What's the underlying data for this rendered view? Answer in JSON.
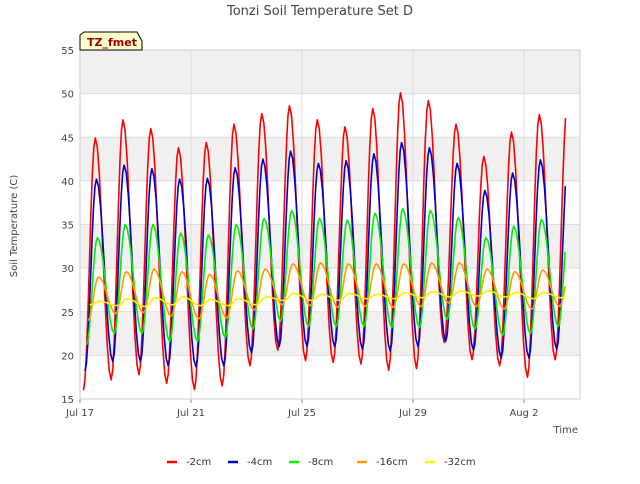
{
  "chart_data": {
    "type": "line",
    "title": "Tonzi Soil Temperature Set D",
    "xlabel": "Time",
    "ylabel": "Soil Temperature (C)",
    "ylim": [
      15,
      55
    ],
    "y_ticks": [
      15,
      20,
      25,
      30,
      35,
      40,
      45,
      50,
      55
    ],
    "x_range_days": [
      "Jul 17",
      "Aug 4"
    ],
    "x_ticks": [
      {
        "label": "Jul 17",
        "day": 0
      },
      {
        "label": "Jul 21",
        "day": 4
      },
      {
        "label": "Jul 25",
        "day": 8
      },
      {
        "label": "Jul 29",
        "day": 12
      },
      {
        "label": "Aug 2",
        "day": 16
      }
    ],
    "site_label": "TZ_fmet",
    "legend_position": "bottom",
    "grid": true,
    "background_bands": true,
    "series": [
      {
        "name": "-2cm",
        "color": "#ff0000",
        "daily_min": [
          16.0,
          17.2,
          17.8,
          16.8,
          16.1,
          16.5,
          18.8,
          20.6,
          19.4,
          19.2,
          19.0,
          18.3,
          18.5,
          21.5,
          19.5,
          18.8,
          17.5,
          19.5,
          18.3,
          22.3
        ],
        "daily_max": [
          44.9,
          47.0,
          46.0,
          43.8,
          44.4,
          46.5,
          47.7,
          48.6,
          47.0,
          46.2,
          48.3,
          50.1,
          49.2,
          46.5,
          42.8,
          45.6,
          47.6,
          48.3
        ]
      },
      {
        "name": "-4cm",
        "color": "#0000cc",
        "daily_min": [
          18.2,
          19.3,
          19.3,
          18.8,
          18.7,
          18.8,
          20.3,
          21.0,
          21.0,
          21.0,
          20.7,
          20.5,
          21.0,
          21.6,
          20.6,
          19.7,
          19.7,
          20.7,
          20.5,
          24.3
        ],
        "daily_max": [
          40.2,
          41.8,
          41.4,
          40.2,
          40.3,
          41.5,
          42.5,
          43.4,
          42.0,
          42.3,
          43.1,
          44.4,
          43.8,
          42.0,
          38.9,
          40.9,
          42.4,
          42.6
        ]
      },
      {
        "name": "-8cm",
        "color": "#00ee00",
        "daily_min": [
          21.2,
          22.5,
          22.5,
          21.6,
          21.6,
          22.0,
          23.0,
          23.9,
          23.3,
          23.3,
          23.3,
          23.2,
          23.2,
          24.1,
          23.0,
          22.3,
          22.5,
          23.3,
          23.0,
          26.5
        ],
        "daily_max": [
          33.5,
          35.0,
          35.0,
          34.0,
          33.8,
          35.0,
          35.7,
          36.6,
          35.7,
          35.5,
          36.3,
          36.8,
          36.6,
          35.8,
          33.5,
          34.8,
          35.6,
          35.7
        ]
      },
      {
        "name": "-16cm",
        "color": "#ff9900",
        "daily_min": [
          24.0,
          24.8,
          24.9,
          24.5,
          24.2,
          24.3,
          25.2,
          25.8,
          25.7,
          25.5,
          25.6,
          25.5,
          25.6,
          26.0,
          25.6,
          25.3,
          25.3,
          25.6,
          25.5,
          27.2
        ],
        "daily_max": [
          29.0,
          29.6,
          29.9,
          29.6,
          29.3,
          29.7,
          29.9,
          30.5,
          30.6,
          30.5,
          30.5,
          30.5,
          30.6,
          30.6,
          29.9,
          29.6,
          29.8,
          30.3
        ]
      },
      {
        "name": "-32cm",
        "color": "#ffee00",
        "daily_min": [
          25.8,
          25.7,
          25.6,
          25.8,
          25.7,
          25.7,
          25.8,
          26.3,
          26.3,
          26.3,
          26.5,
          26.5,
          26.6,
          26.7,
          26.8,
          26.7,
          26.5,
          26.6,
          26.7,
          27.0
        ],
        "daily_max": [
          26.2,
          26.5,
          26.6,
          26.7,
          26.4,
          26.5,
          26.7,
          27.1,
          27.0,
          27.1,
          27.0,
          27.2,
          27.3,
          27.4,
          27.4,
          27.2,
          27.2,
          27.3
        ]
      }
    ]
  }
}
